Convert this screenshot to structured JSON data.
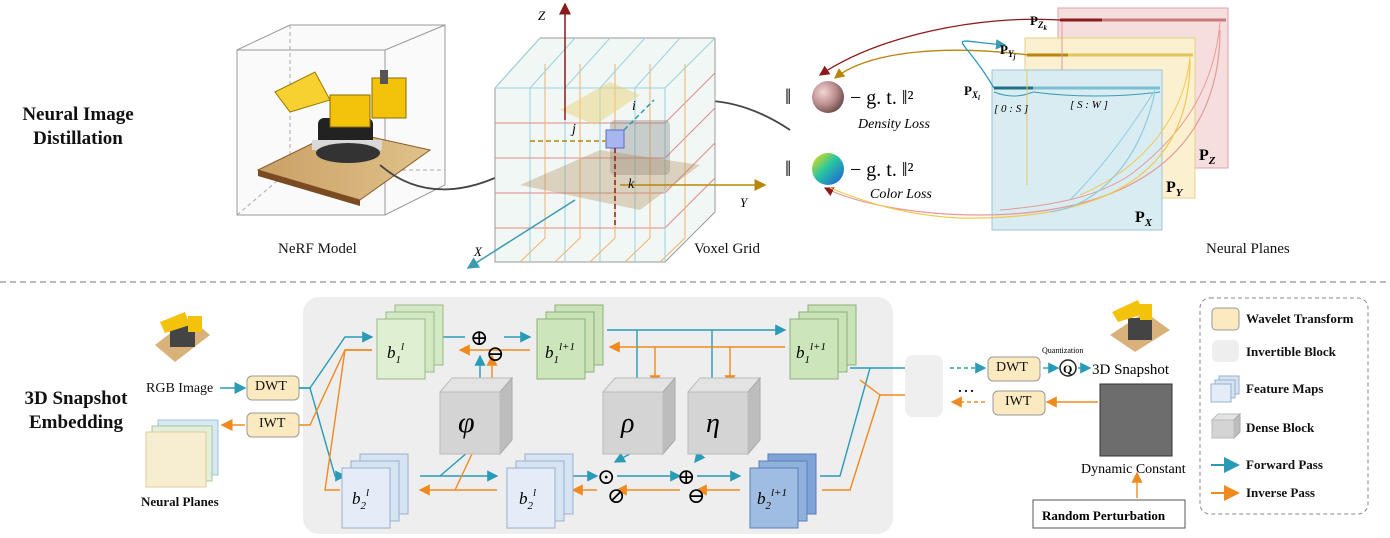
{
  "top": {
    "section_line1": "Neural Image",
    "section_line2": "Distillation",
    "nerf_caption": "NeRF Model",
    "voxel_caption": "Voxel Grid",
    "planes_caption": "Neural Planes",
    "axes": {
      "z": "Z",
      "y": "Y",
      "x": "X"
    },
    "indices": {
      "i": "i",
      "j": "j",
      "k": "k"
    },
    "density_formula": "− g. t. ‖²",
    "color_formula": "− g. t. ‖²",
    "norm_bar": "‖",
    "density_loss": "Density Loss",
    "color_loss": "Color Loss",
    "plane_ranges": {
      "first": "[ 0 : S ]",
      "second": "[ S : W ]"
    },
    "plane_labels": {
      "px": "P",
      "px_sub": "X",
      "py": "P",
      "py_sub": "Y",
      "pz": "P",
      "pz_sub": "Z"
    },
    "row_labels": {
      "pxi": "P",
      "pxi_sub": "X",
      "pxi_subsub": "i",
      "pyj": "P",
      "pyj_sub": "Y",
      "pyj_subsub": "j",
      "pzk": "P",
      "pzk_sub": "Z",
      "pzk_subsub": "k"
    }
  },
  "bottom": {
    "section_line1": "3D Snapshot",
    "section_line2": "Embedding",
    "rgb_image": "RGB Image",
    "neural_planes": "Neural Planes",
    "dwt": "DWT",
    "iwt": "IWT",
    "quantization": "Quantization",
    "q": "Q",
    "snapshot": "3D Snapshot",
    "dynamic_constant": "Dynamic Constant",
    "random_perturbation": "Random Perturbation",
    "ellipsis": "…",
    "blocks": {
      "b": "b",
      "b1": "1",
      "b2": "2",
      "l": "l",
      "l1": "l+1"
    },
    "dense": {
      "phi": "φ",
      "rho": "ρ",
      "eta": "η"
    },
    "ops": {
      "plus": "⊕",
      "minus": "⊖",
      "dot": "⊙",
      "slash": "⊘"
    }
  },
  "legend": {
    "wavelet": "Wavelet Transform",
    "invertible": "Invertible Block",
    "feature": "Feature Maps",
    "dense": "Dense Block",
    "forward": "Forward Pass",
    "inverse": "Inverse Pass"
  },
  "colors": {
    "forward": "#2a9bb7",
    "inverse": "#f08a1e",
    "wavelet": "#fbe9c0",
    "green": "#d3e8c4",
    "blue": "#d6e3f3",
    "deepblue": "#8fb1dc",
    "dense": "#d4d4d4",
    "panel": "#eeeeee"
  }
}
